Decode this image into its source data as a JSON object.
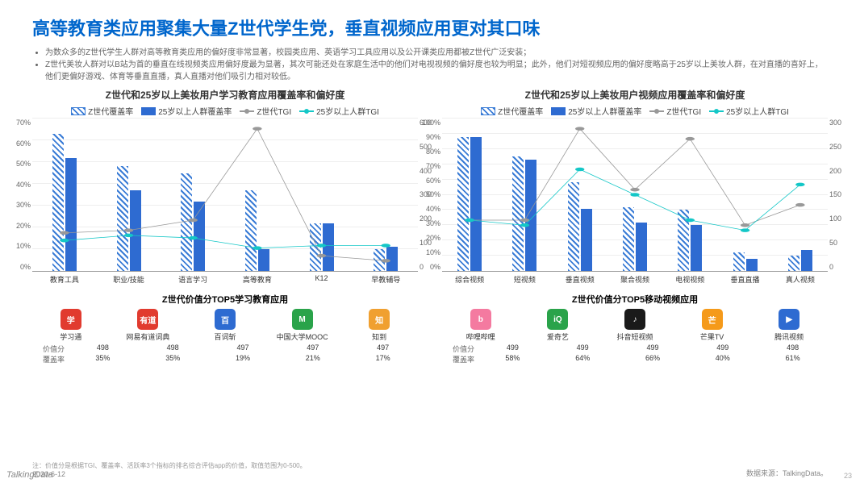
{
  "title": "高等教育类应用聚集大量Z世代学生党，垂直视频应用更对其口味",
  "bullets": [
    "为数众多的Z世代学生人群对高等教育类应用的偏好度非常显著，校园类应用、英语学习工具应用以及公开课类应用都被Z世代广泛安装；",
    "Z世代美妆人群对以B站为首的垂直在线视频类应用偏好度最为显著，其次可能还处在家庭生活中的他们对电视视频的偏好度也较为明显；此外，他们对短视频应用的偏好度略高于25岁以上美妆人群，在对直播的喜好上，他们更偏好游戏、体育等垂直直播，真人直播对他们吸引力相对较低。"
  ],
  "legend": {
    "z_cov": "Z世代覆盖率",
    "o_cov": "25岁以上人群覆盖率",
    "z_tgi": "Z世代TGI",
    "o_tgi": "25岁以上人群TGI"
  },
  "chart1": {
    "title": "Z世代和25岁以上美妆用户学习教育应用覆盖率和偏好度",
    "categories": [
      "教育工具",
      "职业/技能",
      "语言学习",
      "高等教育",
      "K12",
      "早教辅导"
    ],
    "z_cov": [
      63,
      48,
      45,
      37,
      22,
      10
    ],
    "o_cov": [
      52,
      37,
      32,
      10,
      22,
      11
    ],
    "z_tgi": [
      150,
      160,
      200,
      560,
      60,
      40
    ],
    "o_tgi": [
      120,
      140,
      130,
      90,
      100,
      100
    ],
    "y1_max": 70,
    "y1_step": 10,
    "y2_max": 600,
    "y2_step": 100,
    "colors": {
      "hatch": "#3a7cd6",
      "solid": "#2e6bd1",
      "grey": "#999999",
      "teal": "#14c7c7"
    }
  },
  "chart2": {
    "title": "Z世代和25岁以上美妆用户视频应用覆盖率和偏好度",
    "categories": [
      "综合视频",
      "短视频",
      "垂直视频",
      "聚合视频",
      "电视视频",
      "垂直直播",
      "真人视频"
    ],
    "z_cov": [
      88,
      75,
      58,
      42,
      40,
      12,
      10
    ],
    "o_cov": [
      88,
      73,
      41,
      32,
      30,
      8,
      14
    ],
    "z_tgi": [
      100,
      100,
      280,
      160,
      260,
      90,
      130
    ],
    "o_tgi": [
      100,
      90,
      200,
      150,
      100,
      80,
      170
    ],
    "y1_max": 100,
    "y1_step": 10,
    "y2_max": 300,
    "y2_step": 50,
    "colors": {
      "hatch": "#3a7cd6",
      "solid": "#2e6bd1",
      "grey": "#999999",
      "teal": "#14c7c7"
    }
  },
  "table1": {
    "title": "Z世代价值分TOP5学习教育应用",
    "apps": [
      {
        "name": "学习通",
        "color": "#e13b2f",
        "txt": "学"
      },
      {
        "name": "网易有道词典",
        "color": "#e13b2f",
        "txt": "有道"
      },
      {
        "name": "百词斩",
        "color": "#2e6bd1",
        "txt": "百"
      },
      {
        "name": "中国大学MOOC",
        "color": "#2aa34a",
        "txt": "M"
      },
      {
        "name": "知到",
        "color": "#f0a030",
        "txt": "知"
      }
    ],
    "rows": [
      {
        "label": "价值分",
        "vals": [
          "498",
          "498",
          "497",
          "497",
          "497"
        ]
      },
      {
        "label": "覆盖率",
        "vals": [
          "35%",
          "35%",
          "19%",
          "21%",
          "17%"
        ]
      }
    ]
  },
  "table2": {
    "title": "Z世代价值分TOP5移动视频应用",
    "apps": [
      {
        "name": "哔哩哔哩",
        "color": "#f47aa0",
        "txt": "b"
      },
      {
        "name": "爱奇艺",
        "color": "#2aa34a",
        "txt": "iQ"
      },
      {
        "name": "抖音短视频",
        "color": "#1a1a1a",
        "txt": "♪"
      },
      {
        "name": "芒果TV",
        "color": "#f59a1a",
        "txt": "芒"
      },
      {
        "name": "腾讯视频",
        "color": "#2e6bd1",
        "txt": "▶"
      }
    ],
    "rows": [
      {
        "label": "价值分",
        "vals": [
          "499",
          "499",
          "499",
          "499",
          "498"
        ]
      },
      {
        "label": "覆盖率",
        "vals": [
          "58%",
          "64%",
          "66%",
          "40%",
          "61%"
        ]
      }
    ]
  },
  "note": "注：价值分是根据TGI、覆盖率、活跃率3个指标的排名综合评估app的价值，取值范围为0-500。",
  "source": "数据来源：TalkingData。",
  "date": "2020-6-12",
  "brand": "TalkingData",
  "page": "23"
}
